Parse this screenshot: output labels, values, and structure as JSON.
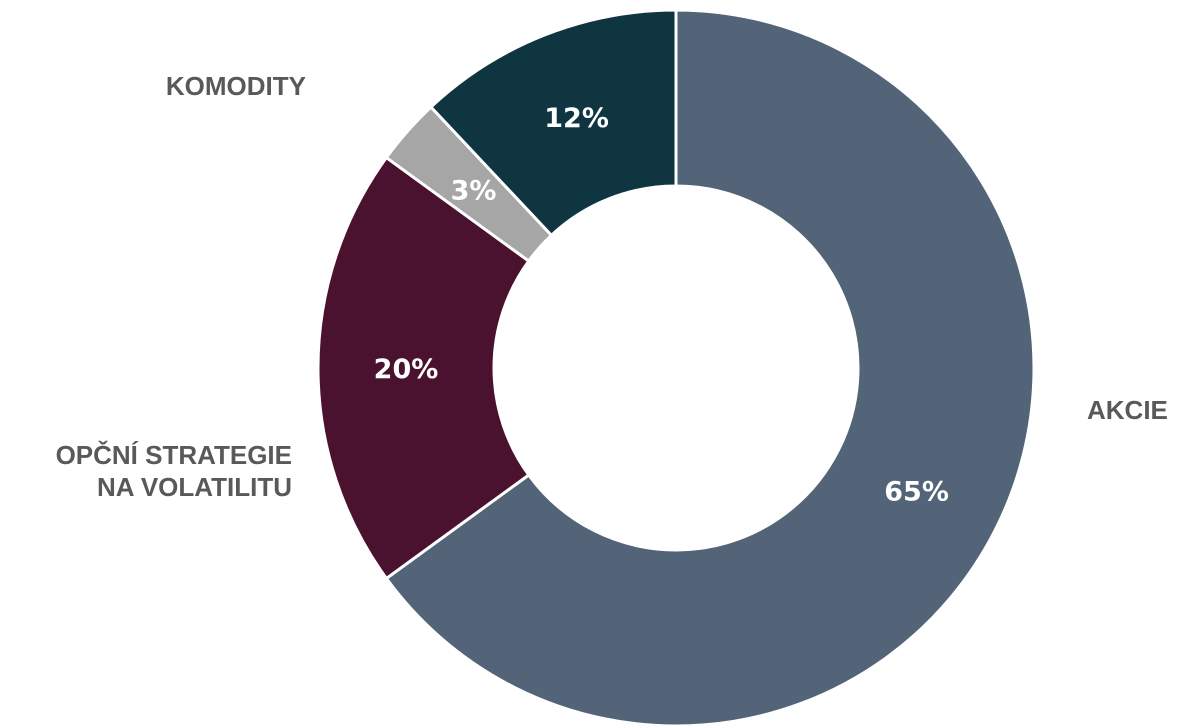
{
  "chart_data": {
    "type": "pie",
    "style": "donut",
    "legend": "none",
    "slices": [
      {
        "category": "AKCIE",
        "value": 65,
        "label": "65%",
        "color": "#536479"
      },
      {
        "category": "OPČNÍ STRATEGIE NA VOLATILITU",
        "category_lines": [
          "OPČNÍ STRATEGIE",
          "NA VOLATILITU"
        ],
        "value": 20,
        "label": "20%",
        "color": "#4b1230"
      },
      {
        "category": "",
        "value": 3,
        "label": "3%",
        "color": "#a6a6a6"
      },
      {
        "category": "KOMODITY",
        "value": 12,
        "label": "12%",
        "color": "#0f3540"
      }
    ]
  }
}
